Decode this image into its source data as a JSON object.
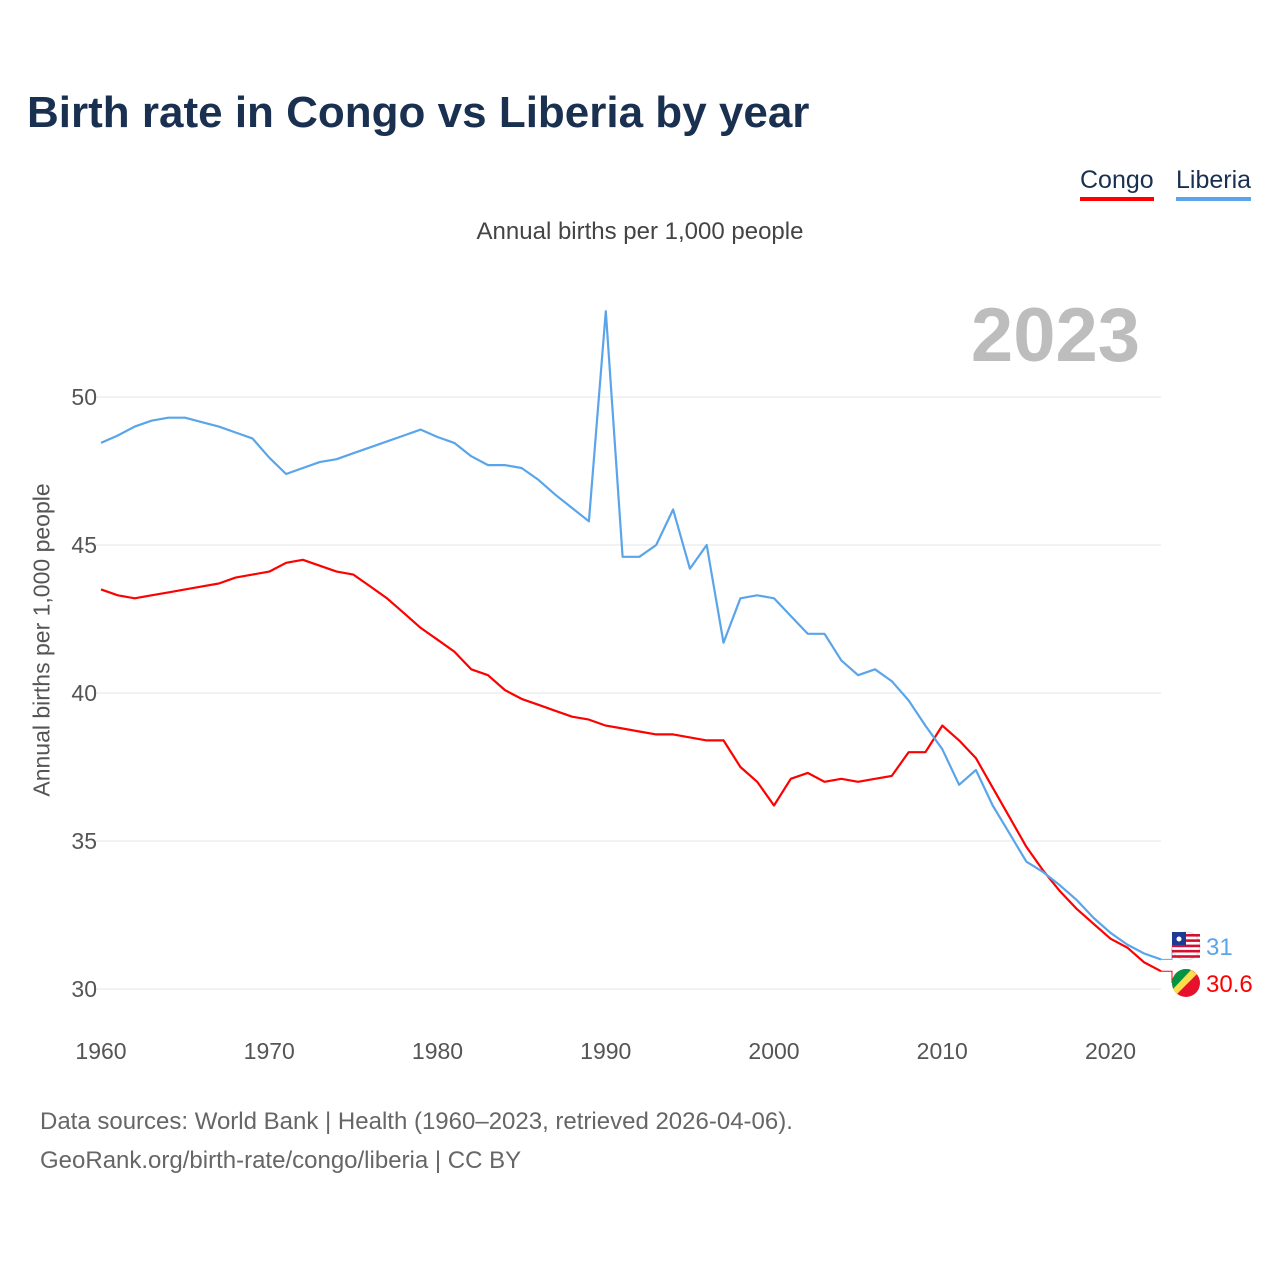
{
  "chart_data": {
    "type": "line",
    "title": "Birth rate in Congo vs Liberia by year",
    "subtitle": "Annual births per 1,000 people",
    "ylabel": "Annual births per 1,000 people",
    "xlabel": "",
    "current_year_label": "2023",
    "xlim": [
      1960,
      2023
    ],
    "ylim": [
      29.5,
      53
    ],
    "yticks": [
      30,
      35,
      40,
      45,
      50
    ],
    "xticks": [
      1960,
      1970,
      1980,
      1990,
      2000,
      2010,
      2020
    ],
    "grid": true,
    "legend_placement": "top-right",
    "x_start": 1960,
    "series": [
      {
        "name": "Congo",
        "color": "#ff0000",
        "end_label": "30.6",
        "values": [
          43.5,
          43.3,
          43.2,
          43.3,
          43.4,
          43.5,
          43.6,
          43.7,
          43.9,
          44.0,
          44.1,
          44.4,
          44.5,
          44.3,
          44.1,
          44.0,
          43.6,
          43.2,
          42.7,
          42.2,
          41.8,
          41.4,
          40.8,
          40.6,
          40.1,
          39.8,
          39.6,
          39.4,
          39.2,
          39.1,
          38.9,
          38.8,
          38.7,
          38.6,
          38.6,
          38.5,
          38.4,
          38.4,
          37.5,
          37.0,
          36.2,
          37.1,
          37.3,
          37.0,
          37.1,
          37.0,
          37.1,
          37.2,
          38.0,
          38.0,
          38.9,
          38.4,
          37.8,
          36.8,
          35.8,
          34.8,
          34.0,
          33.3,
          32.7,
          32.2,
          31.7,
          31.4,
          30.9,
          30.6
        ]
      },
      {
        "name": "Liberia",
        "color": "#5aa5ea",
        "end_label": "31",
        "values": [
          48.45,
          48.7,
          49.0,
          49.2,
          49.3,
          49.3,
          49.15,
          49.0,
          48.8,
          48.6,
          47.95,
          47.4,
          47.6,
          47.8,
          47.9,
          48.1,
          48.3,
          48.5,
          48.7,
          48.9,
          48.65,
          48.45,
          48.0,
          47.7,
          47.7,
          47.6,
          47.2,
          46.7,
          46.25,
          45.8,
          52.9,
          44.6,
          44.6,
          45.0,
          46.2,
          44.2,
          45.0,
          41.7,
          43.2,
          43.3,
          43.2,
          42.6,
          42.0,
          42.0,
          41.1,
          40.6,
          40.8,
          40.4,
          39.75,
          38.9,
          38.1,
          36.9,
          37.4,
          36.2,
          35.25,
          34.3,
          33.95,
          33.5,
          33.0,
          32.4,
          31.9,
          31.5,
          31.2,
          31.0
        ]
      }
    ]
  },
  "sources": {
    "line1": "Data sources: World Bank | Health (1960–2023, retrieved 2026-04-06).",
    "line2": "GeoRank.org/birth-rate/congo/liberia | CC BY"
  }
}
